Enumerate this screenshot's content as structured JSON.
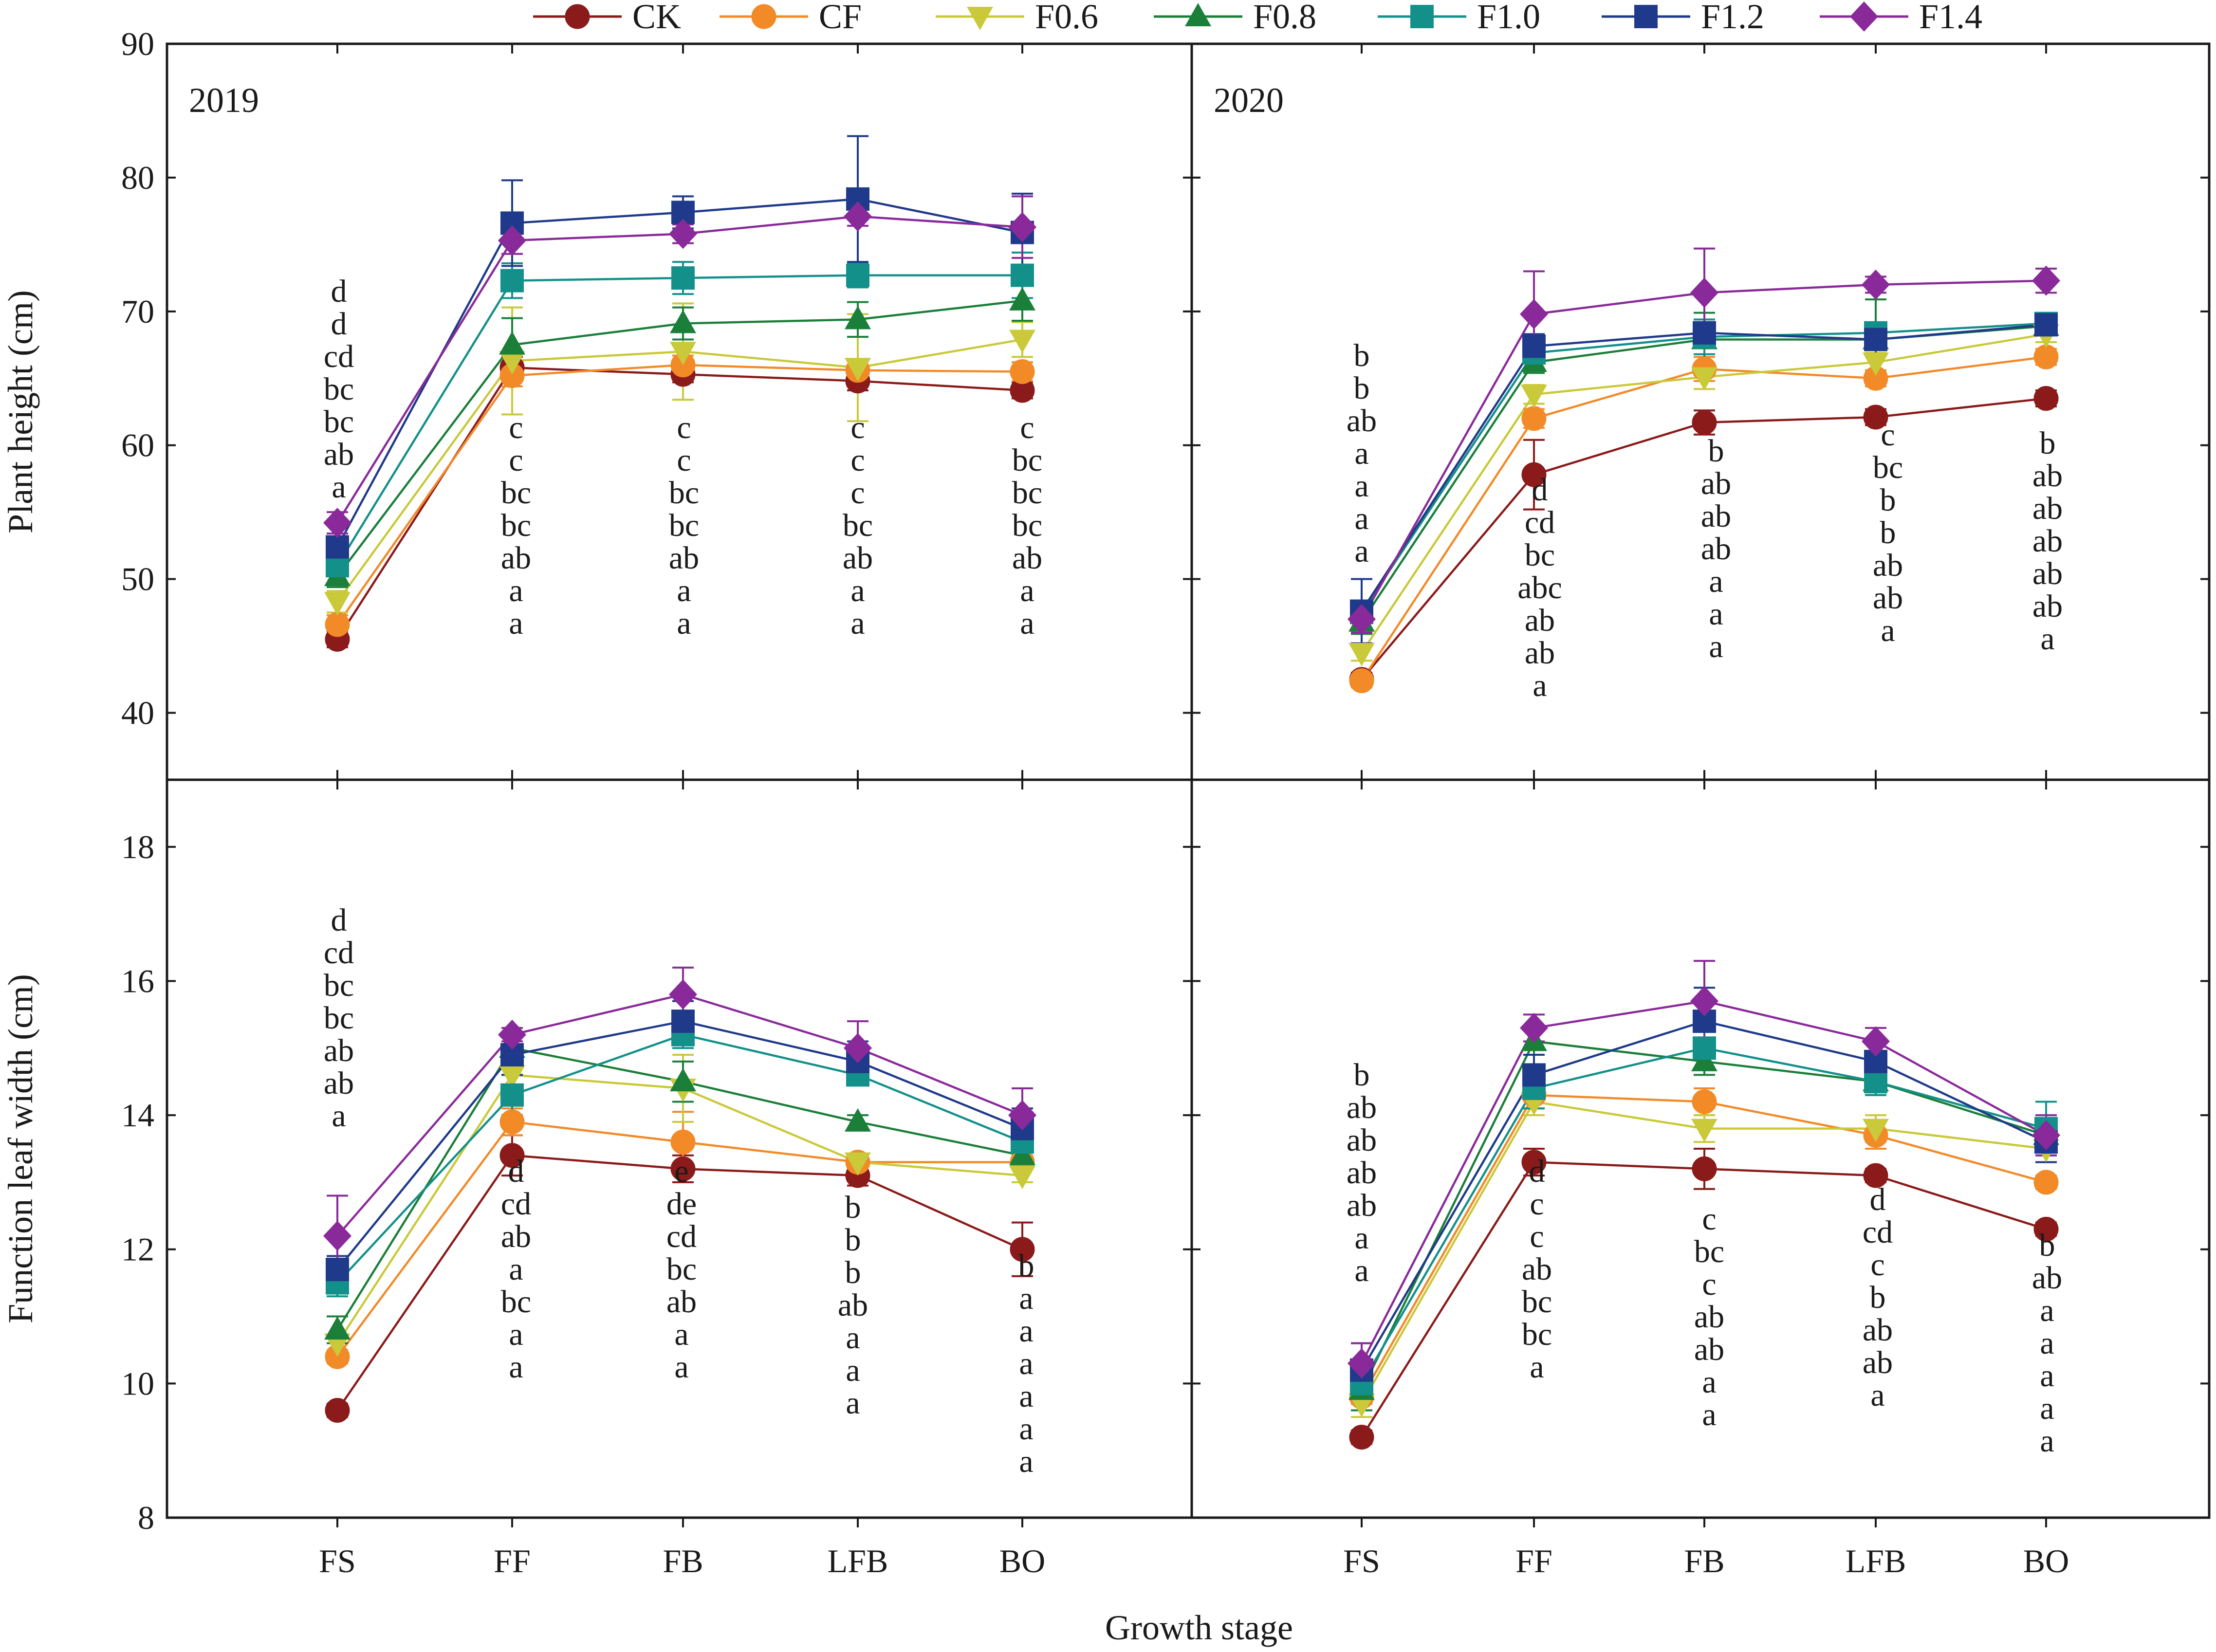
{
  "chart_data": {
    "type": "line",
    "xlabel": "Growth stage",
    "categories": [
      "FS",
      "FF",
      "FB",
      "LFB",
      "BO"
    ],
    "series_meta": [
      {
        "name": "CK",
        "color": "#8b1a1a",
        "marker": "circle"
      },
      {
        "name": "CF",
        "color": "#f28a28",
        "marker": "circle"
      },
      {
        "name": "F0.6",
        "color": "#c9c93a",
        "marker": "triangle-down"
      },
      {
        "name": "F0.8",
        "color": "#1b7f3a",
        "marker": "triangle-up"
      },
      {
        "name": "F1.0",
        "color": "#13908a",
        "marker": "square"
      },
      {
        "name": "F1.2",
        "color": "#1f3a8a",
        "marker": "square"
      },
      {
        "name": "F1.4",
        "color": "#8a2a9a",
        "marker": "diamond"
      }
    ],
    "panels": [
      {
        "id": "height-2019",
        "year": "2019",
        "ylabel": "Plant height (cm)",
        "ylim": [
          35,
          90
        ],
        "yticks": [
          40,
          50,
          60,
          70,
          80,
          90
        ],
        "series": [
          {
            "name": "CK",
            "values": [
              45.5,
              65.8,
              65.3,
              64.8,
              64.1
            ],
            "errors": [
              0.6,
              0.8,
              0.6,
              0.7,
              0.6
            ]
          },
          {
            "name": "CF",
            "values": [
              46.6,
              65.2,
              66.0,
              65.6,
              65.5
            ],
            "errors": [
              0.7,
              0.8,
              0.7,
              0.7,
              0.7
            ]
          },
          {
            "name": "F0.6",
            "values": [
              48.3,
              66.3,
              67.0,
              65.8,
              67.9
            ],
            "errors": [
              0.8,
              4.0,
              3.6,
              4.0,
              1.3
            ]
          },
          {
            "name": "F0.8",
            "values": [
              50.2,
              67.5,
              69.1,
              69.4,
              70.8
            ],
            "errors": [
              0.8,
              2.0,
              1.2,
              1.3,
              1.5
            ]
          },
          {
            "name": "F1.0",
            "values": [
              51.0,
              72.3,
              72.5,
              72.7,
              72.7
            ],
            "errors": [
              0.8,
              1.3,
              1.2,
              0.9,
              1.7
            ]
          },
          {
            "name": "F1.2",
            "values": [
              52.4,
              76.6,
              77.4,
              78.4,
              75.9
            ],
            "errors": [
              0.8,
              3.2,
              1.2,
              4.7,
              2.9
            ]
          },
          {
            "name": "F1.4",
            "values": [
              54.2,
              75.3,
              75.8,
              77.1,
              76.3
            ],
            "errors": [
              0.8,
              1.0,
              0.7,
              0.7,
              2.3
            ]
          }
        ],
        "letters": [
          [
            "d",
            "d",
            "cd",
            "bc",
            "bc",
            "ab",
            "a"
          ],
          [
            "c",
            "c",
            "bc",
            "bc",
            "ab",
            "a",
            "a"
          ],
          [
            "c",
            "c",
            "bc",
            "bc",
            "ab",
            "a",
            "a"
          ],
          [
            "c",
            "c",
            "c",
            "bc",
            "ab",
            "a",
            "a"
          ],
          [
            "c",
            "bc",
            "bc",
            "bc",
            "ab",
            "a",
            "a"
          ]
        ]
      },
      {
        "id": "height-2020",
        "year": "2020",
        "ylabel": "",
        "ylim": [
          35,
          90
        ],
        "yticks": [
          40,
          50,
          60,
          70,
          80,
          90
        ],
        "series": [
          {
            "name": "CK",
            "values": [
              42.5,
              57.8,
              61.7,
              62.1,
              63.5
            ],
            "errors": [
              0.5,
              2.6,
              0.9,
              0.6,
              0.6
            ]
          },
          {
            "name": "CF",
            "values": [
              42.4,
              62.0,
              65.7,
              65.0,
              66.6
            ],
            "errors": [
              0.5,
              0.7,
              0.9,
              0.6,
              0.6
            ]
          },
          {
            "name": "F0.6",
            "values": [
              44.5,
              63.8,
              65.1,
              66.2,
              68.3
            ],
            "errors": [
              0.6,
              0.7,
              0.9,
              0.7,
              0.6
            ]
          },
          {
            "name": "F0.8",
            "values": [
              46.8,
              66.2,
              67.9,
              67.9,
              68.9
            ],
            "errors": [
              0.9,
              0.8,
              2.0,
              3.0,
              0.6
            ]
          },
          {
            "name": "F1.0",
            "values": [
              47.5,
              66.9,
              68.1,
              68.4,
              69.1
            ],
            "errors": [
              0.8,
              0.7,
              1.3,
              0.7,
              0.6
            ]
          },
          {
            "name": "F1.2",
            "values": [
              47.6,
              67.4,
              68.4,
              67.9,
              69.0
            ],
            "errors": [
              2.4,
              0.9,
              0.8,
              0.7,
              0.6
            ]
          },
          {
            "name": "F1.4",
            "values": [
              47.0,
              69.8,
              71.4,
              72.0,
              72.3
            ],
            "errors": [
              1.0,
              3.2,
              3.3,
              0.6,
              0.9
            ]
          }
        ],
        "letters": [
          [
            "b",
            "b",
            "ab",
            "a",
            "a",
            "a",
            "a"
          ],
          [
            "d",
            "cd",
            "bc",
            "abc",
            "ab",
            "ab",
            "a"
          ],
          [
            "b",
            "ab",
            "ab",
            "ab",
            "a",
            "a",
            "a"
          ],
          [
            "c",
            "bc",
            "b",
            "b",
            "ab",
            "ab",
            "a"
          ],
          [
            "b",
            "ab",
            "ab",
            "ab",
            "ab",
            "ab",
            "a"
          ]
        ]
      },
      {
        "id": "width-2019",
        "year": "",
        "ylabel": "Function leaf width (cm)",
        "ylim": [
          8,
          19
        ],
        "yticks": [
          8,
          10,
          12,
          14,
          16,
          18
        ],
        "series": [
          {
            "name": "CK",
            "values": [
              9.6,
              13.4,
              13.2,
              13.1,
              12.0
            ],
            "errors": [
              0.1,
              0.3,
              0.2,
              0.15,
              0.4
            ]
          },
          {
            "name": "CF",
            "values": [
              10.4,
              13.9,
              13.6,
              13.3,
              13.3
            ],
            "errors": [
              0.1,
              0.2,
              0.45,
              0.1,
              0.1
            ]
          },
          {
            "name": "F0.6",
            "values": [
              10.6,
              14.6,
              14.4,
              13.3,
              13.1
            ],
            "errors": [
              0.1,
              0.2,
              0.5,
              0.1,
              0.1
            ]
          },
          {
            "name": "F0.8",
            "values": [
              10.8,
              15.0,
              14.5,
              13.9,
              13.4
            ],
            "errors": [
              0.2,
              0.1,
              0.3,
              0.1,
              0.1
            ]
          },
          {
            "name": "F1.0",
            "values": [
              11.5,
              14.3,
              15.2,
              14.6,
              13.6
            ],
            "errors": [
              0.2,
              0.3,
              0.2,
              0.1,
              0.1
            ]
          },
          {
            "name": "F1.2",
            "values": [
              11.7,
              14.9,
              15.4,
              14.8,
              13.8
            ],
            "errors": [
              0.2,
              0.3,
              0.3,
              0.3,
              0.3
            ]
          },
          {
            "name": "F1.4",
            "values": [
              12.2,
              15.2,
              15.8,
              15.0,
              14.0
            ],
            "errors": [
              0.6,
              0.1,
              0.4,
              0.4,
              0.4
            ]
          }
        ],
        "letters": [
          [
            "d",
            "cd",
            "bc",
            "bc",
            "ab",
            "ab",
            "a"
          ],
          [
            "d",
            "cd",
            "ab",
            "a",
            "bc",
            "a",
            "a"
          ],
          [
            "e",
            "de",
            "cd",
            "bc",
            "ab",
            "a",
            "a"
          ],
          [
            "b",
            "b",
            "b",
            "ab",
            "a",
            "a",
            "a"
          ],
          [
            "b",
            "a",
            "a",
            "a",
            "a",
            "a",
            "a"
          ]
        ]
      },
      {
        "id": "width-2020",
        "year": "",
        "ylabel": "",
        "ylim": [
          8,
          19
        ],
        "yticks": [
          8,
          10,
          12,
          14,
          16,
          18
        ],
        "series": [
          {
            "name": "CK",
            "values": [
              9.2,
              13.3,
              13.2,
              13.1,
              12.3
            ],
            "errors": [
              0.1,
              0.2,
              0.3,
              0.1,
              0.1
            ]
          },
          {
            "name": "CF",
            "values": [
              9.8,
              14.3,
              14.2,
              13.7,
              13.0
            ],
            "errors": [
              0.2,
              0.2,
              0.2,
              0.2,
              0.1
            ]
          },
          {
            "name": "F0.6",
            "values": [
              9.7,
              14.2,
              13.8,
              13.8,
              13.5
            ],
            "errors": [
              0.2,
              0.2,
              0.2,
              0.2,
              0.2
            ]
          },
          {
            "name": "F0.8",
            "values": [
              9.9,
              15.1,
              14.8,
              14.5,
              13.7
            ],
            "errors": [
              0.3,
              0.2,
              0.2,
              0.2,
              0.2
            ]
          },
          {
            "name": "F1.0",
            "values": [
              10.0,
              14.4,
              15.0,
              14.5,
              13.8
            ],
            "errors": [
              0.3,
              0.3,
              0.3,
              0.2,
              0.4
            ]
          },
          {
            "name": "F1.2",
            "values": [
              10.2,
              14.6,
              15.4,
              14.8,
              13.6
            ],
            "errors": [
              0.4,
              0.3,
              0.5,
              0.3,
              0.3
            ]
          },
          {
            "name": "F1.4",
            "values": [
              10.3,
              15.3,
              15.7,
              15.1,
              13.7
            ],
            "errors": [
              0.3,
              0.2,
              0.6,
              0.2,
              0.3
            ]
          }
        ],
        "letters": [
          [
            "b",
            "ab",
            "ab",
            "ab",
            "ab",
            "a",
            "a"
          ],
          [
            "d",
            "c",
            "c",
            "ab",
            "bc",
            "bc",
            "a"
          ],
          [
            "c",
            "bc",
            "c",
            "ab",
            "ab",
            "a",
            "a"
          ],
          [
            "d",
            "cd",
            "c",
            "b",
            "ab",
            "ab",
            "a"
          ],
          [
            "b",
            "ab",
            "a",
            "a",
            "a",
            "a",
            "a"
          ]
        ]
      }
    ]
  }
}
